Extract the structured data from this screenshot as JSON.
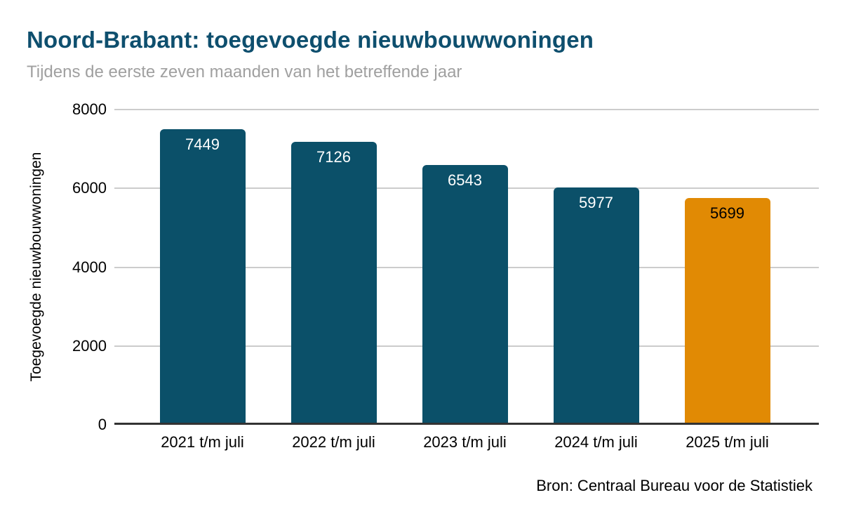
{
  "header": {
    "title": "Noord-Brabant: toegevoegde nieuwbouwwoningen",
    "subtitle": "Tijdens de eerste zeven maanden van het betreffende jaar"
  },
  "source_note": "Bron: Centraal Bureau voor de Statistiek",
  "colors": {
    "bar_teal": "#0b5069",
    "bar_orange": "#e18a04",
    "title_text": "#0e4f6e",
    "subtitle_text": "#a0a0a0",
    "gridline": "#cccccc",
    "axis_line": "#333333",
    "value_label_on_teal": "#ffffff",
    "value_label_on_orange": "#000000"
  },
  "chart_data": {
    "type": "bar",
    "title": "Noord-Brabant: toegevoegde nieuwbouwwoningen",
    "subtitle": "Tijdens de eerste zeven maanden van het betreffende jaar",
    "categories": [
      "2021 t/m juli",
      "2022 t/m juli",
      "2023 t/m juli",
      "2024 t/m juli",
      "2025 t/m juli"
    ],
    "values": [
      7449,
      7126,
      6543,
      5977,
      5699
    ],
    "bar_colors": [
      "#0b5069",
      "#0b5069",
      "#0b5069",
      "#0b5069",
      "#e18a04"
    ],
    "value_label_colors": [
      "#ffffff",
      "#ffffff",
      "#ffffff",
      "#ffffff",
      "#000000"
    ],
    "xlabel": "",
    "ylabel": "Toegevoegde nieuwbouwwoningen",
    "ylim": [
      0,
      8000
    ],
    "yticks": [
      0,
      2000,
      4000,
      6000,
      8000
    ],
    "grid": "horizontal",
    "legend": "none",
    "source": "Bron: Centraal Bureau voor de Statistiek"
  }
}
